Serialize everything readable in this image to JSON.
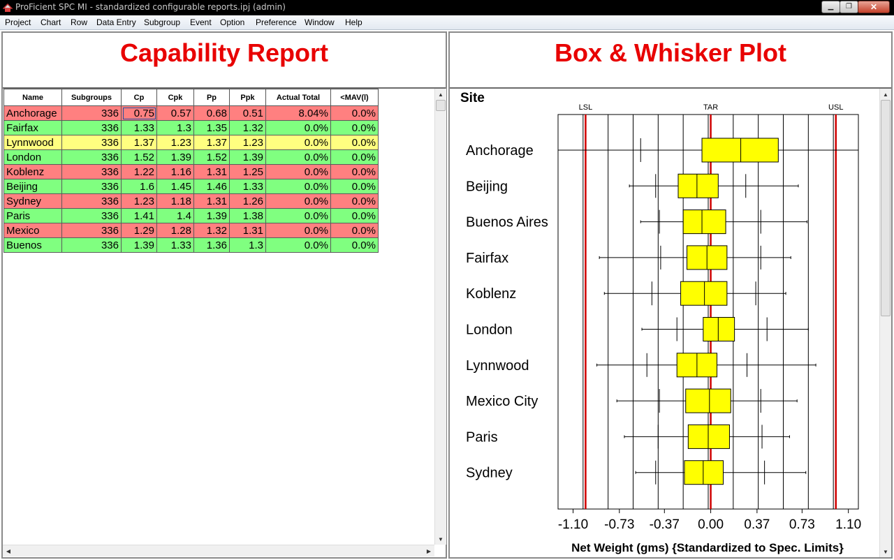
{
  "window": {
    "title": "ProFicient SPC MI - standardized configurable reports.ipj (admin)",
    "min_glyph": "▁",
    "max_glyph": "❐",
    "close_glyph": "✕"
  },
  "menu": [
    {
      "label": "Project"
    },
    {
      "label": "Chart"
    },
    {
      "label": "Row"
    },
    {
      "label": "Data Entry"
    },
    {
      "label": "Subgroup"
    },
    {
      "label": "Event"
    },
    {
      "label": "Option"
    },
    {
      "label": "Preference"
    },
    {
      "label": "Window"
    },
    {
      "label": "Help"
    }
  ],
  "left_pane": {
    "title": "Capability Report",
    "columns": [
      "Name",
      "Subgroups",
      "Cp",
      "Cpk",
      "Pp",
      "Ppk",
      "Actual Total",
      "<MAV(l)"
    ],
    "rows": [
      {
        "status": "red",
        "cells": [
          "Anchorage",
          "336",
          "0.75",
          "0.57",
          "0.68",
          "0.51",
          "8.04%",
          "0.0%"
        ]
      },
      {
        "status": "green",
        "cells": [
          "Fairfax",
          "336",
          "1.33",
          "1.3",
          "1.35",
          "1.32",
          "0.0%",
          "0.0%"
        ]
      },
      {
        "status": "yellow",
        "cells": [
          "Lynnwood",
          "336",
          "1.37",
          "1.23",
          "1.37",
          "1.23",
          "0.0%",
          "0.0%"
        ]
      },
      {
        "status": "green",
        "cells": [
          "London",
          "336",
          "1.52",
          "1.39",
          "1.52",
          "1.39",
          "0.0%",
          "0.0%"
        ]
      },
      {
        "status": "red",
        "cells": [
          "Koblenz",
          "336",
          "1.22",
          "1.16",
          "1.31",
          "1.25",
          "0.0%",
          "0.0%"
        ]
      },
      {
        "status": "green",
        "cells": [
          "Beijing",
          "336",
          "1.6",
          "1.45",
          "1.46",
          "1.33",
          "0.0%",
          "0.0%"
        ]
      },
      {
        "status": "red",
        "cells": [
          "Sydney",
          "336",
          "1.23",
          "1.18",
          "1.31",
          "1.26",
          "0.0%",
          "0.0%"
        ]
      },
      {
        "status": "green",
        "cells": [
          "Paris",
          "336",
          "1.41",
          "1.4",
          "1.39",
          "1.38",
          "0.0%",
          "0.0%"
        ]
      },
      {
        "status": "red",
        "cells": [
          "Mexico",
          "336",
          "1.29",
          "1.28",
          "1.32",
          "1.31",
          "0.0%",
          "0.0%"
        ]
      },
      {
        "status": "green",
        "cells": [
          "Buenos",
          "336",
          "1.39",
          "1.33",
          "1.36",
          "1.3",
          "0.0%",
          "0.0%"
        ]
      }
    ],
    "status_colors": {
      "red": "#ff8080",
      "green": "#80ff80",
      "yellow": "#ffff80"
    }
  },
  "right_pane": {
    "title": "Box & Whisker Plot"
  },
  "chart_data": {
    "type": "boxplot",
    "title": "Box & Whisker Plot",
    "category_label": "Site",
    "xlabel": "Net Weight (gms) {Standardized to Spec. Limits}",
    "xlim": [
      -1.22,
      1.18
    ],
    "ticks": [
      -1.1,
      -0.73,
      -0.37,
      0.0,
      0.37,
      0.73,
      1.1
    ],
    "tick_labels": [
      "-1.10",
      "-0.73",
      "-0.37",
      "0.00",
      "0.37",
      "0.73",
      "1.10"
    ],
    "reference_lines": [
      {
        "label": "LSL",
        "value": -1.0,
        "color": "#d00000"
      },
      {
        "label": "TAR",
        "value": 0.0,
        "color": "#d00000"
      },
      {
        "label": "USL",
        "value": 1.0,
        "color": "#d00000"
      }
    ],
    "box_color": "#ffff00",
    "categories": [
      "Anchorage",
      "Beijing",
      "Buenos Aires",
      "Fairfax",
      "Koblenz",
      "London",
      "Lynnwood",
      "Mexico City",
      "Paris",
      "Sydney"
    ],
    "series": [
      {
        "min": -1.22,
        "lower_fence": -0.56,
        "q1": -0.07,
        "median": 0.24,
        "q3": 0.54,
        "upper_fence": 1.18,
        "max": 1.18
      },
      {
        "min": -0.65,
        "lower_fence": -0.44,
        "q1": -0.26,
        "median": -0.11,
        "q3": 0.06,
        "upper_fence": 0.28,
        "max": 0.7
      },
      {
        "min": -0.56,
        "lower_fence": -0.41,
        "q1": -0.22,
        "median": -0.07,
        "q3": 0.12,
        "upper_fence": 0.4,
        "max": 0.77
      },
      {
        "min": -0.89,
        "lower_fence": -0.4,
        "q1": -0.19,
        "median": -0.03,
        "q3": 0.13,
        "upper_fence": 0.4,
        "max": 0.64
      },
      {
        "min": -0.85,
        "lower_fence": -0.47,
        "q1": -0.24,
        "median": -0.05,
        "q3": 0.13,
        "upper_fence": 0.36,
        "max": 0.6
      },
      {
        "min": -0.55,
        "lower_fence": -0.27,
        "q1": -0.06,
        "median": 0.06,
        "q3": 0.19,
        "upper_fence": 0.45,
        "max": 0.78
      },
      {
        "min": -0.91,
        "lower_fence": -0.51,
        "q1": -0.27,
        "median": -0.11,
        "q3": 0.05,
        "upper_fence": 0.29,
        "max": 0.84
      },
      {
        "min": -0.75,
        "lower_fence": -0.41,
        "q1": -0.2,
        "median": -0.01,
        "q3": 0.16,
        "upper_fence": 0.4,
        "max": 0.69
      },
      {
        "min": -0.69,
        "lower_fence": -0.42,
        "q1": -0.18,
        "median": -0.02,
        "q3": 0.15,
        "upper_fence": 0.41,
        "max": 0.63
      },
      {
        "min": -0.6,
        "lower_fence": -0.44,
        "q1": -0.21,
        "median": -0.06,
        "q3": 0.1,
        "upper_fence": 0.43,
        "max": 0.76
      }
    ]
  }
}
